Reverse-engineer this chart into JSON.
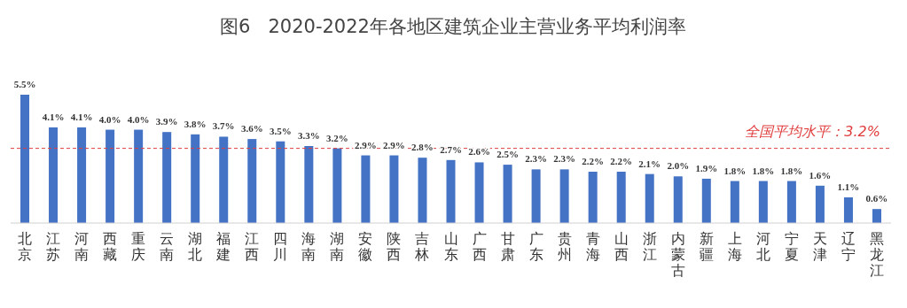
{
  "chart_data": {
    "type": "bar",
    "title": "图6   2020-2022年各地区建筑企业主营业务平均利润率",
    "categories": [
      "北京",
      "江苏",
      "河南",
      "西藏",
      "重庆",
      "云南",
      "湖北",
      "福建",
      "江西",
      "四川",
      "海南",
      "湖南",
      "安徽",
      "陕西",
      "吉林",
      "山东",
      "广西",
      "甘肃",
      "广东",
      "贵州",
      "青海",
      "山西",
      "浙江",
      "内蒙古",
      "新疆",
      "上海",
      "河北",
      "宁夏",
      "天津",
      "辽宁",
      "黑龙江"
    ],
    "values": [
      5.5,
      4.1,
      4.1,
      4.0,
      4.0,
      3.9,
      3.8,
      3.7,
      3.6,
      3.5,
      3.3,
      3.2,
      2.9,
      2.9,
      2.8,
      2.7,
      2.6,
      2.5,
      2.3,
      2.3,
      2.2,
      2.2,
      2.1,
      2.0,
      1.9,
      1.8,
      1.8,
      1.8,
      1.6,
      1.1,
      0.6
    ],
    "value_labels": [
      "5.5%",
      "4.1%",
      "4.1%",
      "4.0%",
      "4.0%",
      "3.9%",
      "3.8%",
      "3.7%",
      "3.6%",
      "3.5%",
      "3.3%",
      "3.2%",
      "2.9%",
      "2.9%",
      "2.8%",
      "2.7%",
      "2.6%",
      "2.5%",
      "2.3%",
      "2.3%",
      "2.2%",
      "2.2%",
      "2.1%",
      "2.0%",
      "1.9%",
      "1.8%",
      "1.8%",
      "1.8%",
      "1.6%",
      "1.1%",
      "0.6%"
    ],
    "color": "#4472c4",
    "ref_lines": [
      {
        "axis": "y",
        "value": 3.2,
        "label": "全国平均水平：3.2%",
        "color": "#e03c3c",
        "line_style": "dashed"
      }
    ]
  }
}
